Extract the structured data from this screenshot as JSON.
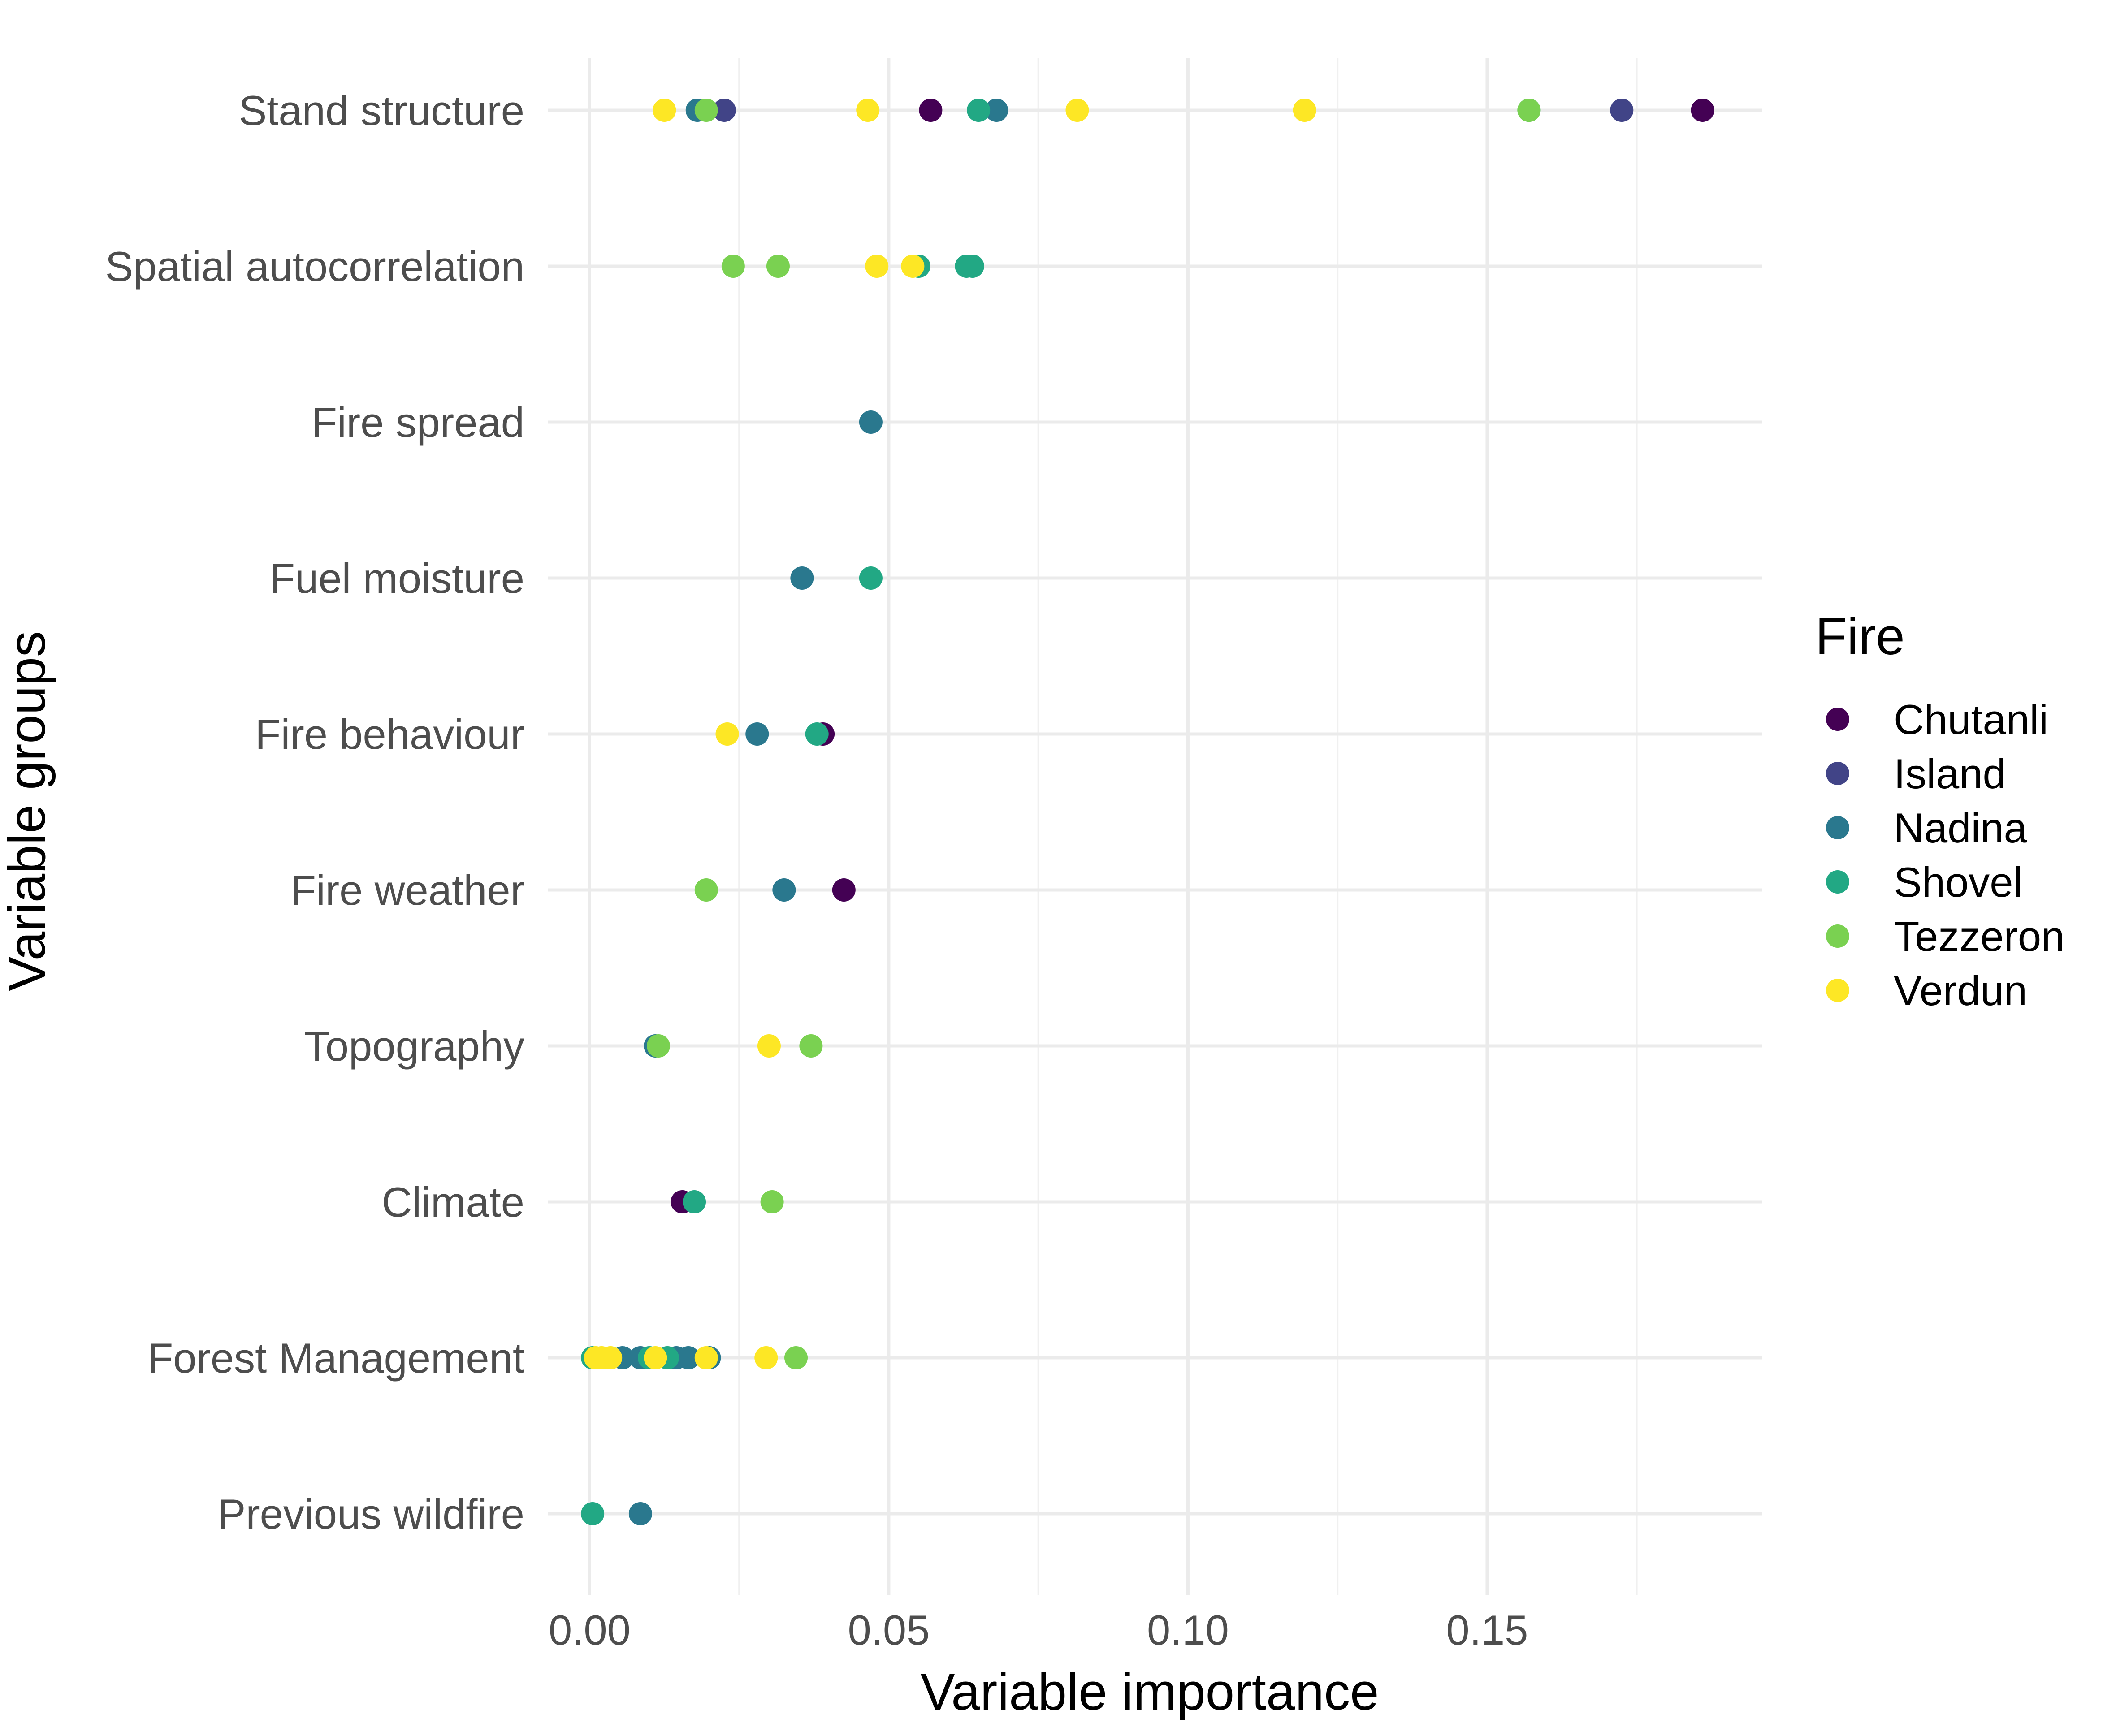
{
  "chart_data": {
    "type": "scatter",
    "title": "",
    "xlabel": "Variable importance",
    "ylabel": "Variable groups",
    "xlim": [
      -0.007,
      0.196
    ],
    "x_ticks": [
      0.0,
      0.05,
      0.1,
      0.15
    ],
    "x_tick_labels": [
      "0.00",
      "0.05",
      "0.10",
      "0.15"
    ],
    "x_minor_ticks": [
      0.025,
      0.075,
      0.125,
      0.175
    ],
    "categories": [
      "Stand structure",
      "Spatial autocorrelation",
      "Fire spread",
      "Fuel moisture",
      "Fire behaviour",
      "Fire weather",
      "Topography",
      "Climate",
      "Forest Management",
      "Previous wildfire"
    ],
    "grid": true,
    "legend": {
      "title": "Fire",
      "position": "right"
    },
    "series": [
      {
        "name": "Chutanli",
        "color": "#440154",
        "points": [
          {
            "x": 0.057,
            "y": "Stand structure"
          },
          {
            "x": 0.186,
            "y": "Stand structure"
          },
          {
            "x": 0.039,
            "y": "Fire behaviour"
          },
          {
            "x": 0.0425,
            "y": "Fire weather"
          },
          {
            "x": 0.0155,
            "y": "Climate"
          }
        ]
      },
      {
        "name": "Island",
        "color": "#414487",
        "points": [
          {
            "x": 0.0225,
            "y": "Stand structure"
          },
          {
            "x": 0.1725,
            "y": "Stand structure"
          }
        ]
      },
      {
        "name": "Nadina",
        "color": "#2A788E",
        "points": [
          {
            "x": 0.018,
            "y": "Stand structure"
          },
          {
            "x": 0.068,
            "y": "Stand structure"
          },
          {
            "x": 0.047,
            "y": "Fire spread"
          },
          {
            "x": 0.0355,
            "y": "Fuel moisture"
          },
          {
            "x": 0.028,
            "y": "Fire behaviour"
          },
          {
            "x": 0.0325,
            "y": "Fire weather"
          },
          {
            "x": 0.011,
            "y": "Topography"
          },
          {
            "x": 0.0055,
            "y": "Forest Management"
          },
          {
            "x": 0.0085,
            "y": "Forest Management"
          },
          {
            "x": 0.0145,
            "y": "Forest Management"
          },
          {
            "x": 0.0165,
            "y": "Forest Management"
          },
          {
            "x": 0.02,
            "y": "Forest Management"
          },
          {
            "x": 0.0085,
            "y": "Previous wildfire"
          }
        ]
      },
      {
        "name": "Shovel",
        "color": "#22A884",
        "points": [
          {
            "x": 0.065,
            "y": "Stand structure"
          },
          {
            "x": 0.157,
            "y": "Stand structure"
          },
          {
            "x": 0.055,
            "y": "Spatial autocorrelation"
          },
          {
            "x": 0.063,
            "y": "Spatial autocorrelation"
          },
          {
            "x": 0.064,
            "y": "Spatial autocorrelation"
          },
          {
            "x": 0.047,
            "y": "Fuel moisture"
          },
          {
            "x": 0.038,
            "y": "Fire behaviour"
          },
          {
            "x": 0.0175,
            "y": "Climate"
          },
          {
            "x": 0.0005,
            "y": "Forest Management"
          },
          {
            "x": 0.01,
            "y": "Forest Management"
          },
          {
            "x": 0.013,
            "y": "Forest Management"
          },
          {
            "x": 0.0005,
            "y": "Previous wildfire"
          }
        ]
      },
      {
        "name": "Tezzeron",
        "color": "#7AD151",
        "points": [
          {
            "x": 0.0195,
            "y": "Stand structure"
          },
          {
            "x": 0.157,
            "y": "Stand structure"
          },
          {
            "x": 0.024,
            "y": "Spatial autocorrelation"
          },
          {
            "x": 0.0315,
            "y": "Spatial autocorrelation"
          },
          {
            "x": 0.0195,
            "y": "Fire weather"
          },
          {
            "x": 0.0115,
            "y": "Topography"
          },
          {
            "x": 0.037,
            "y": "Topography"
          },
          {
            "x": 0.0305,
            "y": "Climate"
          },
          {
            "x": 0.0345,
            "y": "Forest Management"
          }
        ]
      },
      {
        "name": "Verdun",
        "color": "#FDE725",
        "points": [
          {
            "x": 0.0125,
            "y": "Stand structure"
          },
          {
            "x": 0.0465,
            "y": "Stand structure"
          },
          {
            "x": 0.0815,
            "y": "Stand structure"
          },
          {
            "x": 0.1195,
            "y": "Stand structure"
          },
          {
            "x": 0.048,
            "y": "Spatial autocorrelation"
          },
          {
            "x": 0.054,
            "y": "Spatial autocorrelation"
          },
          {
            "x": 0.023,
            "y": "Fire behaviour"
          },
          {
            "x": 0.03,
            "y": "Topography"
          },
          {
            "x": 0.001,
            "y": "Forest Management"
          },
          {
            "x": 0.002,
            "y": "Forest Management"
          },
          {
            "x": 0.0035,
            "y": "Forest Management"
          },
          {
            "x": 0.011,
            "y": "Forest Management"
          },
          {
            "x": 0.0195,
            "y": "Forest Management"
          },
          {
            "x": 0.0295,
            "y": "Forest Management"
          }
        ]
      }
    ]
  }
}
